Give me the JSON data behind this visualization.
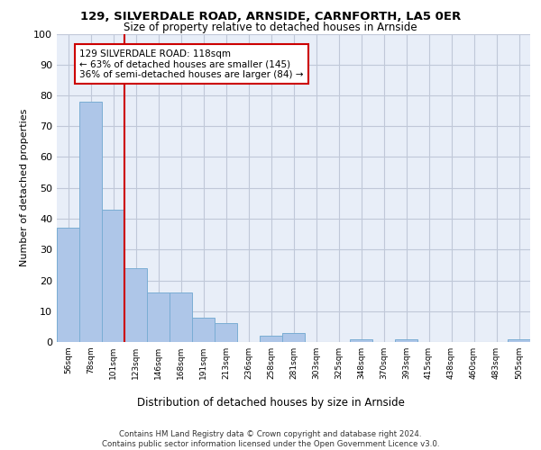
{
  "title1": "129, SILVERDALE ROAD, ARNSIDE, CARNFORTH, LA5 0ER",
  "title2": "Size of property relative to detached houses in Arnside",
  "xlabel": "Distribution of detached houses by size in Arnside",
  "ylabel": "Number of detached properties",
  "bar_labels": [
    "56sqm",
    "78sqm",
    "101sqm",
    "123sqm",
    "146sqm",
    "168sqm",
    "191sqm",
    "213sqm",
    "236sqm",
    "258sqm",
    "281sqm",
    "303sqm",
    "325sqm",
    "348sqm",
    "370sqm",
    "393sqm",
    "415sqm",
    "438sqm",
    "460sqm",
    "483sqm",
    "505sqm"
  ],
  "bar_values": [
    37,
    78,
    43,
    24,
    16,
    16,
    8,
    6,
    0,
    2,
    3,
    0,
    0,
    1,
    0,
    1,
    0,
    0,
    0,
    0,
    1
  ],
  "bar_color": "#aec6e8",
  "bar_edge_color": "#7aadd4",
  "vline_x_index": 2,
  "vline_color": "#cc0000",
  "annotation_text": "129 SILVERDALE ROAD: 118sqm\n← 63% of detached houses are smaller (145)\n36% of semi-detached houses are larger (84) →",
  "annotation_box_color": "#cc0000",
  "grid_color": "#c0c8d8",
  "bg_color": "#e8eef8",
  "footer_text": "Contains HM Land Registry data © Crown copyright and database right 2024.\nContains public sector information licensed under the Open Government Licence v3.0.",
  "ylim": [
    0,
    100
  ],
  "yticks": [
    0,
    10,
    20,
    30,
    40,
    50,
    60,
    70,
    80,
    90,
    100
  ]
}
